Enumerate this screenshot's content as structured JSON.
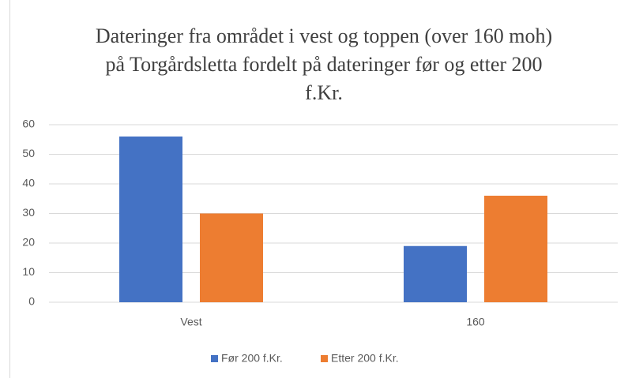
{
  "chart_data": {
    "type": "bar",
    "title": "Dateringer fra området i vest og toppen (over 160 moh) på Torgårdsletta fordelt på dateringer før og etter 200 f.Kr.",
    "categories": [
      "Vest",
      "160"
    ],
    "series": [
      {
        "name": "Før 200 f.Kr.",
        "color": "#4472c4",
        "values": [
          56,
          19
        ]
      },
      {
        "name": "Etter 200 f.Kr.",
        "color": "#ed7d31",
        "values": [
          30,
          36
        ]
      }
    ],
    "ylim": [
      0,
      60
    ],
    "yticks": [
      0,
      10,
      20,
      30,
      40,
      50,
      60
    ],
    "grid": true,
    "legend": "bottom"
  }
}
